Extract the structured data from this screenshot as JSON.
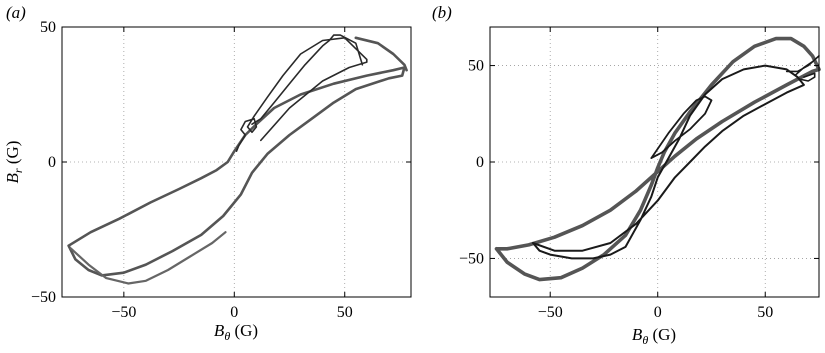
{
  "chart_data": [
    {
      "type": "line",
      "panel_label": "(a)",
      "xlabel": "B_θ (G)",
      "ylabel": "B_r (G)",
      "xlim": [
        -78,
        80
      ],
      "ylim": [
        -50,
        50
      ],
      "xticks": [
        -50,
        0,
        50
      ],
      "yticks": [
        -50,
        0,
        50
      ],
      "xtick_labels": [
        "−50",
        "0",
        "50"
      ],
      "ytick_labels": [
        "−50",
        "0",
        "50"
      ],
      "grid": true,
      "series": [
        {
          "color": "#555555",
          "points": [
            [
              -75,
              -31
            ],
            [
              -65,
              -26
            ],
            [
              -52,
              -21
            ],
            [
              -38,
              -15
            ],
            [
              -25,
              -10
            ],
            [
              -15,
              -6
            ],
            [
              -8,
              -3
            ],
            [
              -3,
              0
            ],
            [
              0,
              4
            ],
            [
              5,
              10
            ],
            [
              10,
              14
            ],
            [
              18,
              20
            ],
            [
              30,
              25
            ],
            [
              45,
              29
            ],
            [
              60,
              32
            ],
            [
              72,
              34
            ],
            [
              77,
              35
            ],
            [
              76,
              32
            ],
            [
              70,
              31
            ],
            [
              55,
              27
            ],
            [
              45,
              22
            ],
            [
              35,
              16
            ],
            [
              25,
              10
            ],
            [
              15,
              3
            ],
            [
              8,
              -4
            ],
            [
              3,
              -12
            ],
            [
              -5,
              -20
            ],
            [
              -15,
              -27
            ],
            [
              -28,
              -33
            ],
            [
              -40,
              -38
            ],
            [
              -50,
              -41
            ],
            [
              -60,
              -42
            ],
            [
              -66,
              -40
            ],
            [
              -72,
              -36
            ],
            [
              -75,
              -31
            ]
          ]
        },
        {
          "color": "#666666",
          "points": [
            [
              -74,
              -32
            ],
            [
              -66,
              -38
            ],
            [
              -58,
              -43
            ],
            [
              -48,
              -45
            ],
            [
              -40,
              -44
            ],
            [
              -30,
              -40
            ],
            [
              -20,
              -35
            ],
            [
              -10,
              -30
            ],
            [
              -4,
              -26
            ]
          ]
        },
        {
          "color": "#2a2a2a",
          "points": [
            [
              12,
              8
            ],
            [
              25,
              20
            ],
            [
              40,
              30
            ],
            [
              52,
              35
            ],
            [
              60,
              37
            ],
            [
              60,
              38
            ],
            [
              50,
              46
            ],
            [
              40,
              45
            ],
            [
              30,
              40
            ],
            [
              22,
              32
            ],
            [
              15,
              24
            ],
            [
              9,
              17
            ],
            [
              6,
              13
            ],
            [
              8,
              11
            ],
            [
              10,
              13
            ],
            [
              9,
              16
            ],
            [
              5,
              15
            ],
            [
              3,
              12
            ],
            [
              5,
              10
            ],
            [
              2,
              6
            ],
            [
              1,
              4
            ]
          ]
        },
        {
          "color": "#2a2a2a",
          "points": [
            [
              58,
              36
            ],
            [
              55,
              44
            ],
            [
              48,
              47
            ],
            [
              45,
              47
            ],
            [
              43,
              45
            ],
            [
              40,
              43
            ],
            [
              32,
              36
            ],
            [
              24,
              28
            ],
            [
              18,
              22
            ],
            [
              12,
              16
            ],
            [
              8,
              14
            ]
          ]
        },
        {
          "color": "#555555",
          "points": [
            [
              55,
              46
            ],
            [
              65,
              44
            ],
            [
              72,
              40
            ],
            [
              77,
              36
            ],
            [
              78,
              34
            ]
          ]
        }
      ]
    },
    {
      "type": "line",
      "panel_label": "(b)",
      "xlabel": "B_θ (G)",
      "ylabel": "",
      "xlim": [
        -78,
        75
      ],
      "ylim": [
        -70,
        70
      ],
      "xticks": [
        -50,
        0,
        50
      ],
      "yticks": [
        -50,
        0,
        50
      ],
      "xtick_labels": [
        "−50",
        "0",
        "50"
      ],
      "ytick_labels": [
        "−50",
        "0",
        "50"
      ],
      "grid": true,
      "series": [
        {
          "color": "#555555",
          "points": [
            [
              -75,
              -45
            ],
            [
              -70,
              -52
            ],
            [
              -62,
              -58
            ],
            [
              -55,
              -61
            ],
            [
              -45,
              -60
            ],
            [
              -35,
              -55
            ],
            [
              -25,
              -48
            ],
            [
              -15,
              -38
            ],
            [
              -8,
              -25
            ],
            [
              -3,
              -12
            ],
            [
              0,
              -3
            ],
            [
              3,
              5
            ],
            [
              8,
              15
            ],
            [
              15,
              26
            ],
            [
              25,
              40
            ],
            [
              35,
              52
            ],
            [
              45,
              60
            ],
            [
              55,
              64
            ],
            [
              62,
              64
            ],
            [
              68,
              60
            ],
            [
              72,
              55
            ],
            [
              75,
              48
            ],
            [
              72,
              47
            ],
            [
              60,
              40
            ],
            [
              45,
              31
            ],
            [
              30,
              21
            ],
            [
              18,
              12
            ],
            [
              8,
              3
            ],
            [
              0,
              -5
            ],
            [
              -10,
              -15
            ],
            [
              -22,
              -25
            ],
            [
              -35,
              -33
            ],
            [
              -48,
              -39
            ],
            [
              -60,
              -43
            ],
            [
              -70,
              -45
            ],
            [
              -75,
              -45
            ]
          ]
        },
        {
          "color": "#1a1a1a",
          "points": [
            [
              -58,
              -42
            ],
            [
              -55,
              -46
            ],
            [
              -50,
              -48
            ],
            [
              -45,
              -49
            ],
            [
              -40,
              -50
            ],
            [
              -35,
              -50
            ],
            [
              -30,
              -50
            ],
            [
              -22,
              -48
            ],
            [
              -15,
              -44
            ],
            [
              -8,
              -30
            ],
            [
              -3,
              -18
            ],
            [
              0,
              -8
            ],
            [
              5,
              2
            ],
            [
              10,
              12
            ],
            [
              15,
              24
            ],
            [
              22,
              35
            ],
            [
              30,
              43
            ],
            [
              40,
              48
            ],
            [
              50,
              50
            ],
            [
              60,
              48
            ],
            [
              65,
              44
            ],
            [
              68,
              40
            ],
            [
              60,
              36
            ],
            [
              50,
              30
            ],
            [
              40,
              24
            ],
            [
              30,
              16
            ],
            [
              22,
              8
            ],
            [
              15,
              0
            ],
            [
              8,
              -8
            ],
            [
              0,
              -20
            ],
            [
              -10,
              -32
            ],
            [
              -22,
              -42
            ],
            [
              -35,
              -46
            ],
            [
              -48,
              -46
            ],
            [
              -58,
              -42
            ]
          ]
        },
        {
          "color": "#1a1a1a",
          "points": [
            [
              -3,
              2
            ],
            [
              5,
              15
            ],
            [
              12,
              25
            ],
            [
              18,
              32
            ],
            [
              22,
              34
            ],
            [
              25,
              32
            ],
            [
              22,
              25
            ],
            [
              15,
              17
            ],
            [
              8,
              11
            ],
            [
              2,
              5
            ],
            [
              -3,
              2
            ]
          ]
        },
        {
          "color": "#1a1a1a",
          "points": [
            [
              60,
              47
            ],
            [
              65,
              47
            ],
            [
              70,
              50
            ],
            [
              73,
              53
            ],
            [
              75,
              55
            ],
            [
              72,
              52
            ],
            [
              68,
              49
            ],
            [
              64,
              45
            ],
            [
              66,
              43
            ],
            [
              70,
              42
            ],
            [
              73,
              44
            ],
            [
              73,
              46
            ],
            [
              68,
              44
            ]
          ]
        }
      ]
    }
  ]
}
